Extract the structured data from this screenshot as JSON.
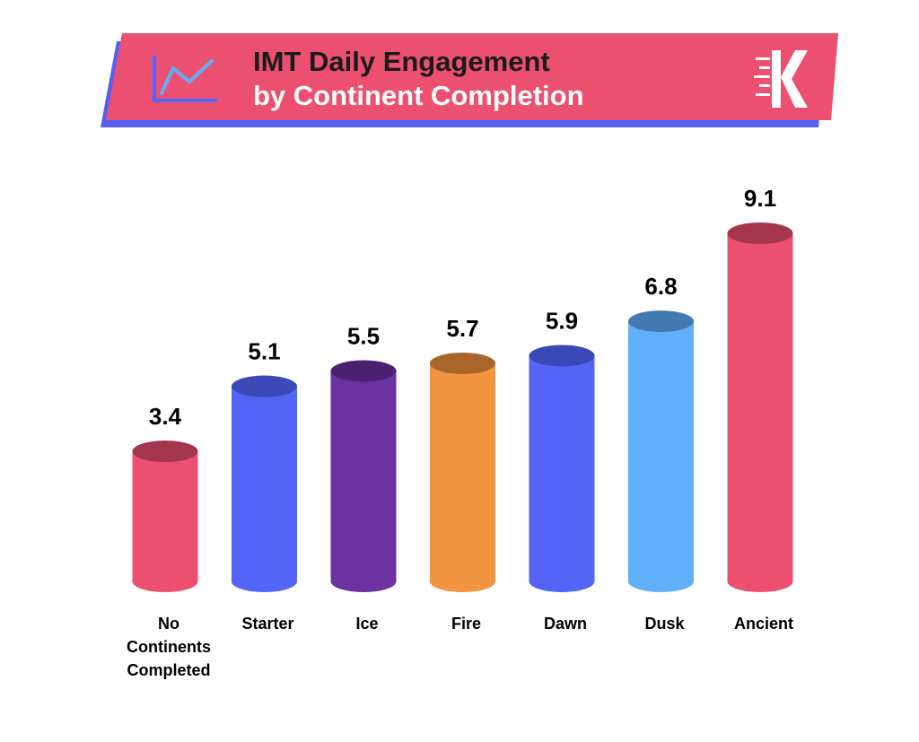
{
  "header": {
    "title_line1": "IMT Daily Engagement",
    "title_line2": "by Continent Completion",
    "banner_color": "#ec5070",
    "banner_shadow_color": "#5560f5",
    "chart_icon": "line-chart-icon",
    "logo_icon": "k-logo-icon"
  },
  "chart_data": {
    "type": "bar",
    "style": "3d-cylinder",
    "title": "IMT Daily Engagement by Continent Completion",
    "categories": [
      "No Continents Completed",
      "Starter",
      "Ice",
      "Fire",
      "Dawn",
      "Dusk",
      "Ancient"
    ],
    "category_lines": [
      [
        "No",
        "Continents",
        "Completed"
      ],
      [
        "Starter"
      ],
      [
        "Ice"
      ],
      [
        "Fire"
      ],
      [
        "Dawn"
      ],
      [
        "Dusk"
      ],
      [
        "Ancient"
      ]
    ],
    "values": [
      3.4,
      5.1,
      5.5,
      5.7,
      5.9,
      6.8,
      9.1
    ],
    "value_labels": [
      "3.4",
      "5.1",
      "5.5",
      "5.7",
      "5.9",
      "6.8",
      "9.1"
    ],
    "colors": [
      "#ec5070",
      "#5364f7",
      "#6c33a0",
      "#f19541",
      "#5364f7",
      "#62aff9",
      "#ec5070"
    ],
    "top_colors": [
      "#a3354c",
      "#3a49b5",
      "#4b2171",
      "#a9662b",
      "#3a49b5",
      "#4479b0",
      "#a3354c"
    ],
    "ylim": [
      0,
      9.1
    ],
    "grid": false,
    "legend": "none"
  }
}
